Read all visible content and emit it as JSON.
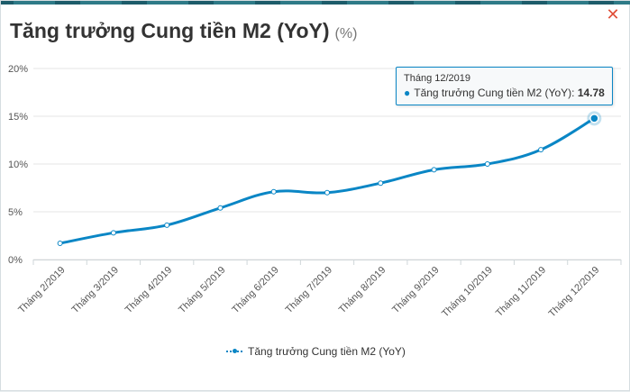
{
  "header": {
    "title": "Tăng trưởng Cung tiền M2 (YoY)",
    "unit": "(%)",
    "close_icon": "✕"
  },
  "tooltip": {
    "header": "Tháng 12/2019",
    "series": "Tăng trưởng Cung tiền M2 (YoY):",
    "value": "14.78"
  },
  "colors": {
    "line": "#0a86c5",
    "grid": "#e6e6e6",
    "close": "#e0503a"
  },
  "chart_data": {
    "type": "line",
    "title": "Tăng trưởng Cung tiền M2 (YoY)",
    "unit": "(%)",
    "categories": [
      "Tháng 2/2019",
      "Tháng 3/2019",
      "Tháng 4/2019",
      "Tháng 5/2019",
      "Tháng 6/2019",
      "Tháng 7/2019",
      "Tháng 8/2019",
      "Tháng 9/2019",
      "Tháng 10/2019",
      "Tháng 11/2019",
      "Tháng 12/2019"
    ],
    "series": [
      {
        "name": "Tăng trưởng Cung tiền M2 (YoY)",
        "values": [
          1.7,
          2.8,
          3.6,
          5.4,
          7.1,
          7.0,
          8.0,
          9.4,
          10.0,
          11.5,
          14.78
        ]
      }
    ],
    "y_ticks": [
      "0%",
      "5%",
      "10%",
      "15%",
      "20%"
    ],
    "ylim": [
      0,
      20
    ],
    "grid": true,
    "legend_position": "bottom"
  }
}
